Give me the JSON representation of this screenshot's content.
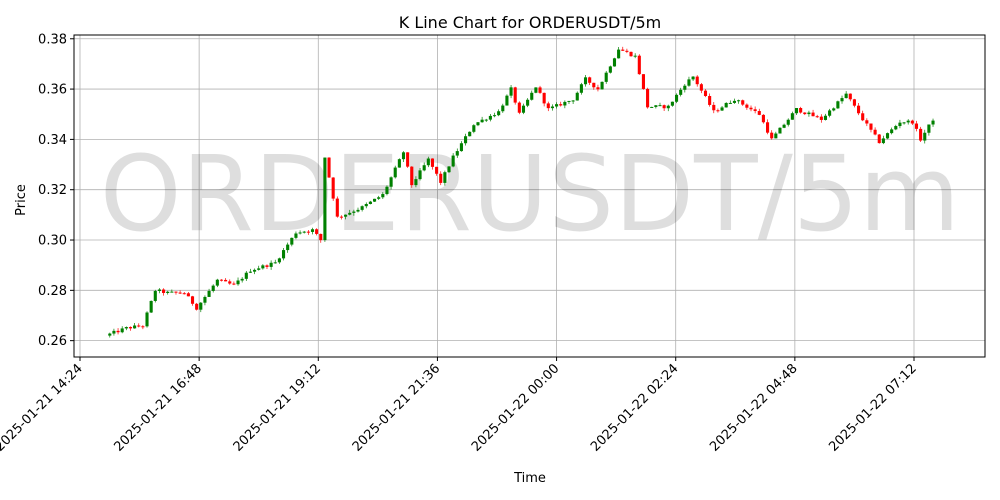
{
  "chart_data": {
    "type": "candlestick",
    "title": "K Line Chart for ORDERUSDT/5m",
    "xlabel": "Time",
    "ylabel": "Price",
    "watermark": "ORDERUSDT/5m",
    "ylim": [
      0.2535,
      0.3815
    ],
    "y_ticks": [
      "0.26",
      "0.28",
      "0.30",
      "0.32",
      "0.34",
      "0.36",
      "0.38"
    ],
    "x_ticks": [
      "2025-01-21 14:24",
      "2025-01-21 16:48",
      "2025-01-21 19:12",
      "2025-01-21 21:36",
      "2025-01-22 00:00",
      "2025-01-22 02:24",
      "2025-01-22 04:48",
      "2025-01-22 07:12"
    ],
    "grid": true,
    "up_color": "#008000",
    "down_color": "#ff0000",
    "close_anchors": [
      [
        "2025-01-21 15:00",
        0.262
      ],
      [
        "2025-01-21 15:25",
        0.265
      ],
      [
        "2025-01-21 15:45",
        0.266
      ],
      [
        "2025-01-21 16:00",
        0.28
      ],
      [
        "2025-01-21 16:15",
        0.279
      ],
      [
        "2025-01-21 16:35",
        0.279
      ],
      [
        "2025-01-21 16:50",
        0.273
      ],
      [
        "2025-01-21 17:15",
        0.284
      ],
      [
        "2025-01-21 17:35",
        0.282
      ],
      [
        "2025-01-21 17:55",
        0.288
      ],
      [
        "2025-01-21 18:25",
        0.291
      ],
      [
        "2025-01-21 18:50",
        0.303
      ],
      [
        "2025-01-21 19:10",
        0.304
      ],
      [
        "2025-01-21 19:20",
        0.3
      ],
      [
        "2025-01-21 19:25",
        0.333
      ],
      [
        "2025-01-21 19:40",
        0.309
      ],
      [
        "2025-01-21 20:10",
        0.313
      ],
      [
        "2025-01-21 20:35",
        0.318
      ],
      [
        "2025-01-21 21:00",
        0.335
      ],
      [
        "2025-01-21 21:10",
        0.322
      ],
      [
        "2025-01-21 21:30",
        0.332
      ],
      [
        "2025-01-21 21:45",
        0.323
      ],
      [
        "2025-01-21 22:00",
        0.333
      ],
      [
        "2025-01-21 22:25",
        0.346
      ],
      [
        "2025-01-21 22:55",
        0.351
      ],
      [
        "2025-01-21 23:10",
        0.36
      ],
      [
        "2025-01-21 23:20",
        0.35
      ],
      [
        "2025-01-21 23:40",
        0.361
      ],
      [
        "2025-01-21 23:55",
        0.352
      ],
      [
        "2025-01-22 00:25",
        0.356
      ],
      [
        "2025-01-22 00:40",
        0.364
      ],
      [
        "2025-01-22 00:55",
        0.36
      ],
      [
        "2025-01-22 01:20",
        0.376
      ],
      [
        "2025-01-22 01:40",
        0.373
      ],
      [
        "2025-01-22 01:55",
        0.353
      ],
      [
        "2025-01-22 02:20",
        0.353
      ],
      [
        "2025-01-22 02:40",
        0.362
      ],
      [
        "2025-01-22 02:50",
        0.365
      ],
      [
        "2025-01-22 03:15",
        0.351
      ],
      [
        "2025-01-22 03:40",
        0.356
      ],
      [
        "2025-01-22 04:10",
        0.35
      ],
      [
        "2025-01-22 04:25",
        0.34
      ],
      [
        "2025-01-22 04:55",
        0.352
      ],
      [
        "2025-01-22 05:25",
        0.348
      ],
      [
        "2025-01-22 05:55",
        0.358
      ],
      [
        "2025-01-22 06:15",
        0.348
      ],
      [
        "2025-01-22 06:35",
        0.339
      ],
      [
        "2025-01-22 07:00",
        0.347
      ],
      [
        "2025-01-22 07:15",
        0.347
      ],
      [
        "2025-01-22 07:25",
        0.34
      ],
      [
        "2025-01-22 07:40",
        0.348
      ]
    ]
  }
}
